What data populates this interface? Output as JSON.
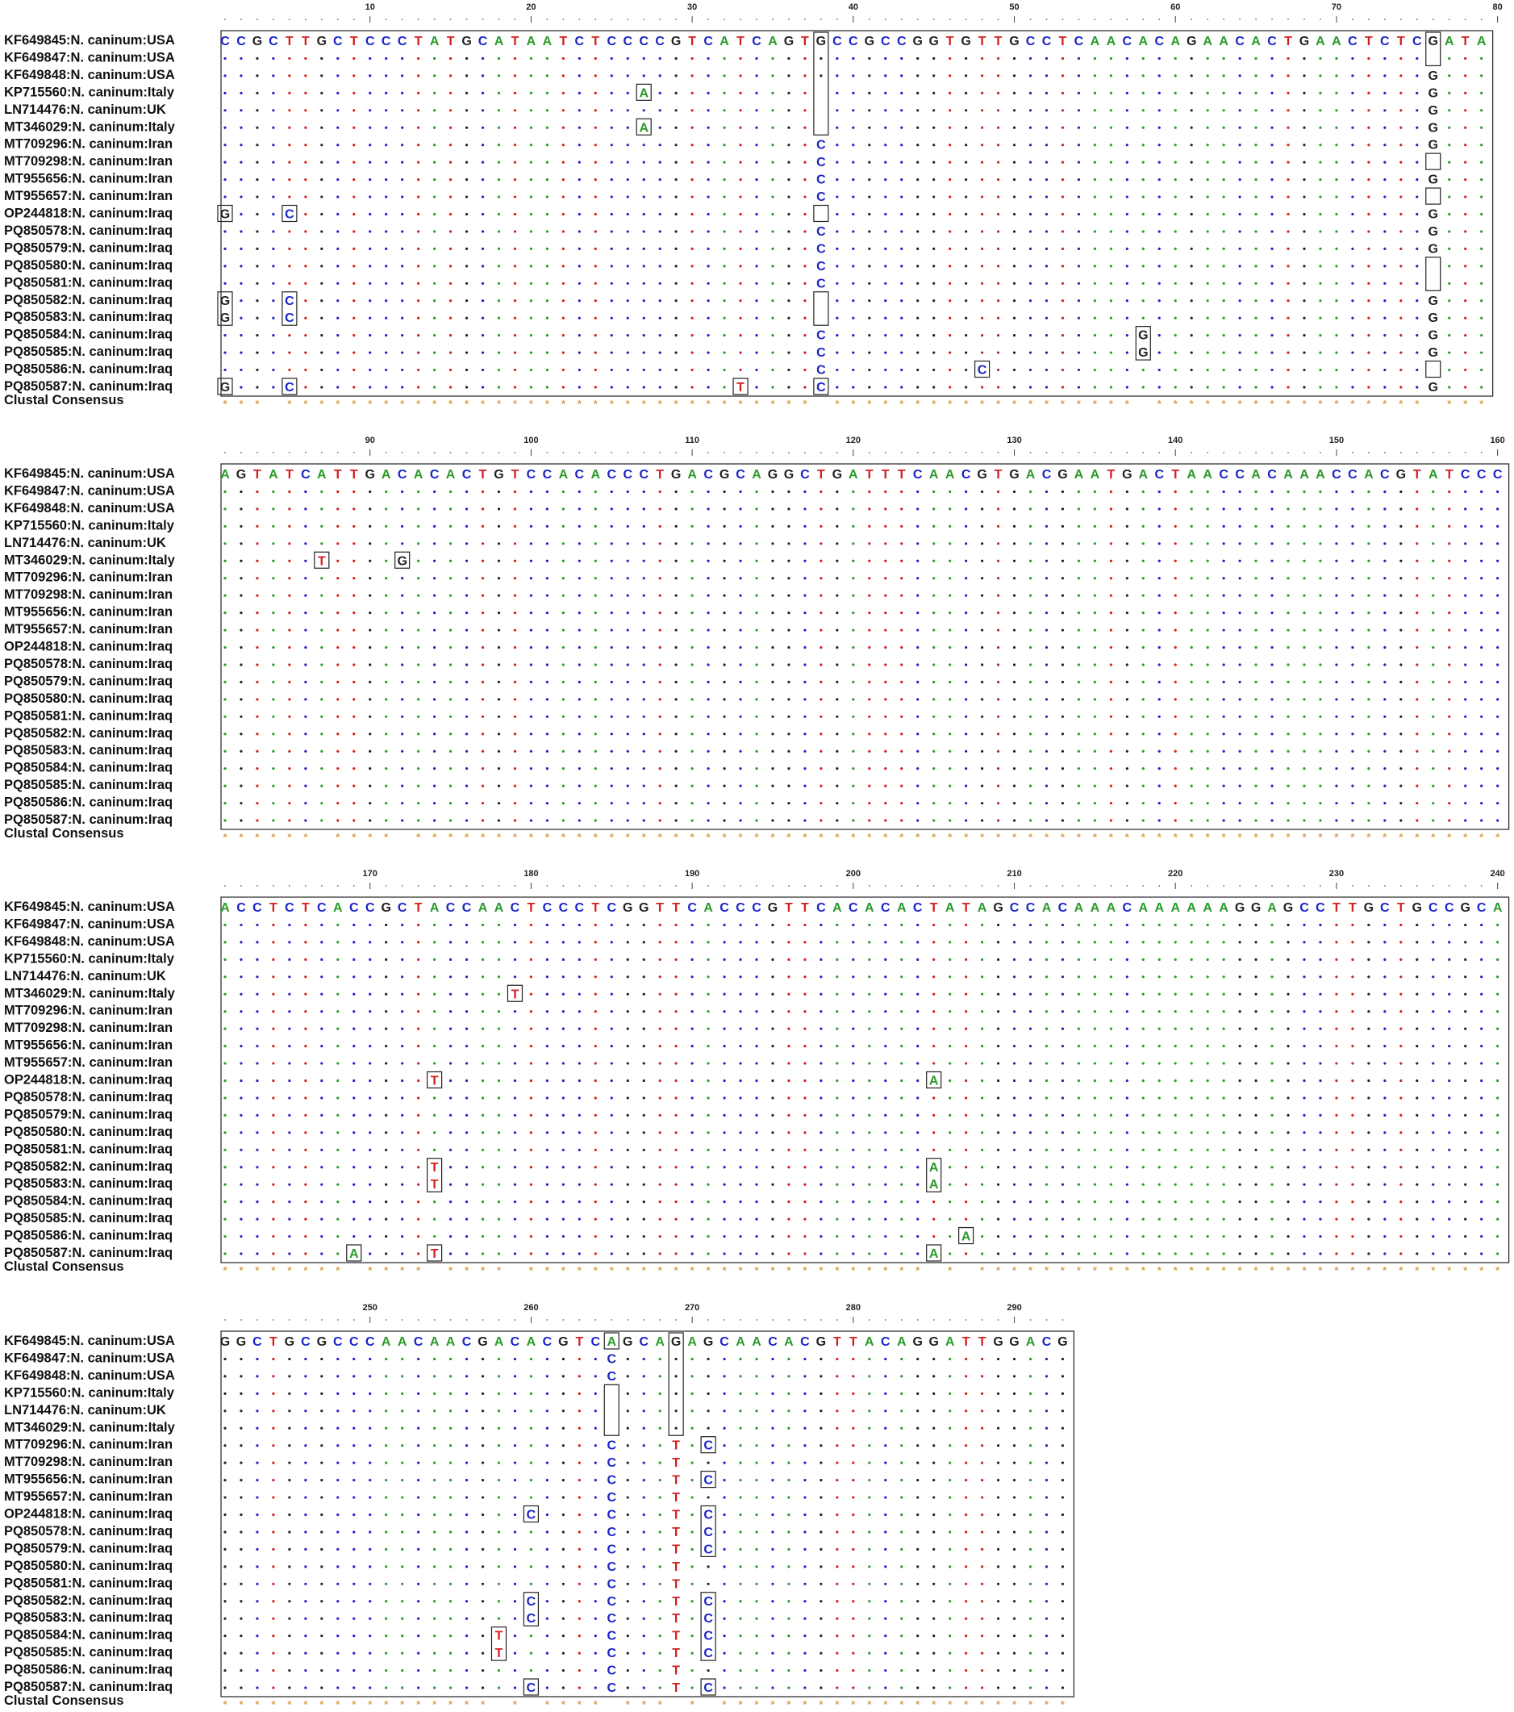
{
  "labels": [
    "KF649845:N. caninum:USA",
    "KF649847:N. caninum:USA",
    "KF649848:N. caninum:USA",
    "KP715560:N. caninum:Italy",
    "LN714476:N. caninum:UK",
    "MT346029:N. caninum:Italy",
    "MT709296:N. caninum:Iran",
    "MT709298:N. caninum:Iran",
    "MT955656:N. caninum:Iran",
    "MT955657:N. caninum:Iran",
    "OP244818:N. caninum:Iraq",
    "PQ850578:N. caninum:Iraq",
    "PQ850579:N. caninum:Iraq",
    "PQ850580:N. caninum:Iraq",
    "PQ850581:N. caninum:Iraq",
    "PQ850582:N. caninum:Iraq",
    "PQ850583:N. caninum:Iraq",
    "PQ850584:N. caninum:Iraq",
    "PQ850585:N. caninum:Iraq",
    "PQ850586:N. caninum:Iraq",
    "PQ850587:N. caninum:Iraq"
  ],
  "consensus_label": "Clustal Consensus",
  "blocks": [
    {
      "start": 1,
      "ticks": [
        "10",
        "20",
        "30",
        "40",
        "50",
        "60",
        "70",
        "80"
      ],
      "reference": "CCGCTTGCTCCCTATGCATAATCTCCCCGTCATCAGTGCCGCCGGTGTTGCCTCAACACAGAACACTGAACTCTCGATA",
      "variants": [
        {
          "row": 3,
          "pos": 27,
          "base": "A"
        },
        {
          "row": 5,
          "pos": 27,
          "base": "A"
        },
        {
          "row": 3,
          "pos": 38,
          "base": "-"
        },
        {
          "row": 4,
          "pos": 38,
          "base": "-"
        },
        {
          "row": 5,
          "pos": 38,
          "base": "-"
        },
        {
          "row": 6,
          "pos": 38,
          "base": "C"
        },
        {
          "row": 7,
          "pos": 38,
          "base": "C"
        },
        {
          "row": 8,
          "pos": 38,
          "base": "C"
        },
        {
          "row": 9,
          "pos": 38,
          "base": "C"
        },
        {
          "row": 10,
          "pos": 38,
          "base": "-"
        },
        {
          "row": 11,
          "pos": 38,
          "base": "C"
        },
        {
          "row": 12,
          "pos": 38,
          "base": "C"
        },
        {
          "row": 13,
          "pos": 38,
          "base": "C"
        },
        {
          "row": 14,
          "pos": 38,
          "base": "C"
        },
        {
          "row": 15,
          "pos": 38,
          "base": "-"
        },
        {
          "row": 16,
          "pos": 38,
          "base": "-"
        },
        {
          "row": 17,
          "pos": 38,
          "base": "C"
        },
        {
          "row": 18,
          "pos": 38,
          "base": "C"
        },
        {
          "row": 19,
          "pos": 38,
          "base": "C"
        },
        {
          "row": 20,
          "pos": 38,
          "base": "C"
        },
        {
          "row": 10,
          "pos": 1,
          "base": "G"
        },
        {
          "row": 15,
          "pos": 1,
          "base": "G"
        },
        {
          "row": 16,
          "pos": 1,
          "base": "G"
        },
        {
          "row": 20,
          "pos": 1,
          "base": "G"
        },
        {
          "row": 10,
          "pos": 5,
          "base": "C"
        },
        {
          "row": 15,
          "pos": 5,
          "base": "C"
        },
        {
          "row": 16,
          "pos": 5,
          "base": "C"
        },
        {
          "row": 20,
          "pos": 5,
          "base": "C"
        },
        {
          "row": 20,
          "pos": 33,
          "base": "T"
        },
        {
          "row": 19,
          "pos": 48,
          "base": "C"
        },
        {
          "row": 17,
          "pos": 58,
          "base": "G"
        },
        {
          "row": 18,
          "pos": 58,
          "base": "G"
        },
        {
          "row": 1,
          "pos": 76,
          "base": "-"
        },
        {
          "row": 2,
          "pos": 76,
          "base": "G"
        },
        {
          "row": 3,
          "pos": 76,
          "base": "G"
        },
        {
          "row": 4,
          "pos": 76,
          "base": "G"
        },
        {
          "row": 5,
          "pos": 76,
          "base": "G"
        },
        {
          "row": 6,
          "pos": 76,
          "base": "G"
        },
        {
          "row": 7,
          "pos": 76,
          "base": "-"
        },
        {
          "row": 8,
          "pos": 76,
          "base": "G"
        },
        {
          "row": 9,
          "pos": 76,
          "base": "-"
        },
        {
          "row": 10,
          "pos": 76,
          "base": "G"
        },
        {
          "row": 11,
          "pos": 76,
          "base": "G"
        },
        {
          "row": 12,
          "pos": 76,
          "base": "G"
        },
        {
          "row": 13,
          "pos": 76,
          "base": "-"
        },
        {
          "row": 14,
          "pos": 76,
          "base": "-"
        },
        {
          "row": 15,
          "pos": 76,
          "base": "G"
        },
        {
          "row": 16,
          "pos": 76,
          "base": "G"
        },
        {
          "row": 17,
          "pos": 76,
          "base": "G"
        },
        {
          "row": 18,
          "pos": 76,
          "base": "G"
        },
        {
          "row": 19,
          "pos": 76,
          "base": "-"
        },
        {
          "row": 20,
          "pos": 76,
          "base": "G"
        }
      ],
      "outlines": [
        {
          "pos": 1,
          "rows": [
            [
              10,
              10
            ],
            [
              15,
              16
            ],
            [
              20,
              20
            ]
          ]
        },
        {
          "pos": 5,
          "rows": [
            [
              10,
              10
            ],
            [
              15,
              16
            ],
            [
              20,
              20
            ]
          ]
        },
        {
          "pos": 27,
          "rows": [
            [
              3,
              3
            ],
            [
              5,
              5
            ]
          ]
        },
        {
          "pos": 33,
          "rows": [
            [
              20,
              20
            ]
          ]
        },
        {
          "pos": 38,
          "rows": [
            [
              0,
              5
            ],
            [
              10,
              10
            ],
            [
              15,
              16
            ],
            [
              20,
              20
            ]
          ]
        },
        {
          "pos": 48,
          "rows": [
            [
              19,
              19
            ]
          ]
        },
        {
          "pos": 58,
          "rows": [
            [
              17,
              18
            ]
          ]
        },
        {
          "pos": 76,
          "rows": [
            [
              0,
              1
            ],
            [
              7,
              7
            ],
            [
              9,
              9
            ],
            [
              13,
              14
            ],
            [
              19,
              19
            ]
          ]
        }
      ],
      "consensus_gaps": [
        4,
        38,
        58,
        76
      ]
    },
    {
      "start": 81,
      "ticks": [
        "90",
        "100",
        "110",
        "120",
        "130",
        "140",
        "150",
        "160"
      ],
      "reference": "AGTATCATTGACACACTGTCCACACCCTGACGCAGGCTGATTTCAACGTGACGAATGACTAACCACAAACCACGTATCCC",
      "variants": [
        {
          "row": 5,
          "pos": 87,
          "base": "T"
        },
        {
          "row": 5,
          "pos": 92,
          "base": "G"
        }
      ],
      "outlines": [
        {
          "pos": 87,
          "rows": [
            [
              5,
              5
            ]
          ]
        },
        {
          "pos": 92,
          "rows": [
            [
              5,
              5
            ]
          ]
        }
      ],
      "consensus_gaps": [
        87,
        92
      ]
    },
    {
      "start": 161,
      "ticks": [
        "170",
        "180",
        "190",
        "200",
        "210",
        "220",
        "230",
        "240"
      ],
      "reference": "ACCTCTCACCGCTACCAACTCCCTCGGTTCACCCGTTCACACACTATAGCCACAAACAAAAAAGGAGCCTTGCTGCCGCA",
      "variants": [
        {
          "row": 5,
          "pos": 179,
          "base": "T"
        },
        {
          "row": 10,
          "pos": 174,
          "base": "T"
        },
        {
          "row": 15,
          "pos": 174,
          "base": "T"
        },
        {
          "row": 16,
          "pos": 174,
          "base": "T"
        },
        {
          "row": 20,
          "pos": 174,
          "base": "T"
        },
        {
          "row": 10,
          "pos": 205,
          "base": "A"
        },
        {
          "row": 15,
          "pos": 205,
          "base": "A"
        },
        {
          "row": 16,
          "pos": 205,
          "base": "A"
        },
        {
          "row": 20,
          "pos": 205,
          "base": "A"
        },
        {
          "row": 19,
          "pos": 207,
          "base": "A"
        },
        {
          "row": 20,
          "pos": 169,
          "base": "A"
        }
      ],
      "outlines": [
        {
          "pos": 169,
          "rows": [
            [
              20,
              20
            ]
          ]
        },
        {
          "pos": 174,
          "rows": [
            [
              10,
              10
            ],
            [
              15,
              16
            ],
            [
              20,
              20
            ]
          ]
        },
        {
          "pos": 179,
          "rows": [
            [
              5,
              5
            ]
          ]
        },
        {
          "pos": 205,
          "rows": [
            [
              10,
              10
            ],
            [
              15,
              16
            ],
            [
              20,
              20
            ]
          ]
        },
        {
          "pos": 207,
          "rows": [
            [
              19,
              19
            ]
          ]
        }
      ],
      "consensus_gaps": [
        169,
        174,
        179,
        205,
        207
      ]
    },
    {
      "start": 241,
      "ticks": [
        "250",
        "260",
        "270",
        "280",
        "290"
      ],
      "reference": "GGCTGCGCCCAACAACGACACGTCAGCAGAGCAACACGTTACAGGATTGGACG",
      "variants": [
        {
          "row": 1,
          "pos": 265,
          "base": "C"
        },
        {
          "row": 2,
          "pos": 265,
          "base": "C"
        },
        {
          "row": 3,
          "pos": 265,
          "base": "-"
        },
        {
          "row": 4,
          "pos": 265,
          "base": "-"
        },
        {
          "row": 5,
          "pos": 265,
          "base": "-"
        },
        {
          "row": 6,
          "pos": 265,
          "base": "C"
        },
        {
          "row": 7,
          "pos": 265,
          "base": "C"
        },
        {
          "row": 8,
          "pos": 265,
          "base": "C"
        },
        {
          "row": 9,
          "pos": 265,
          "base": "C"
        },
        {
          "row": 10,
          "pos": 265,
          "base": "C"
        },
        {
          "row": 11,
          "pos": 265,
          "base": "C"
        },
        {
          "row": 12,
          "pos": 265,
          "base": "C"
        },
        {
          "row": 13,
          "pos": 265,
          "base": "C"
        },
        {
          "row": 14,
          "pos": 265,
          "base": "C"
        },
        {
          "row": 15,
          "pos": 265,
          "base": "C"
        },
        {
          "row": 16,
          "pos": 265,
          "base": "C"
        },
        {
          "row": 17,
          "pos": 265,
          "base": "C"
        },
        {
          "row": 18,
          "pos": 265,
          "base": "C"
        },
        {
          "row": 19,
          "pos": 265,
          "base": "C"
        },
        {
          "row": 20,
          "pos": 265,
          "base": "C"
        },
        {
          "row": 6,
          "pos": 269,
          "base": "T"
        },
        {
          "row": 7,
          "pos": 269,
          "base": "T"
        },
        {
          "row": 8,
          "pos": 269,
          "base": "T"
        },
        {
          "row": 9,
          "pos": 269,
          "base": "T"
        },
        {
          "row": 10,
          "pos": 269,
          "base": "T"
        },
        {
          "row": 11,
          "pos": 269,
          "base": "T"
        },
        {
          "row": 12,
          "pos": 269,
          "base": "T"
        },
        {
          "row": 13,
          "pos": 269,
          "base": "T"
        },
        {
          "row": 14,
          "pos": 269,
          "base": "T"
        },
        {
          "row": 15,
          "pos": 269,
          "base": "T"
        },
        {
          "row": 16,
          "pos": 269,
          "base": "T"
        },
        {
          "row": 17,
          "pos": 269,
          "base": "T"
        },
        {
          "row": 18,
          "pos": 269,
          "base": "T"
        },
        {
          "row": 19,
          "pos": 269,
          "base": "T"
        },
        {
          "row": 20,
          "pos": 269,
          "base": "T"
        },
        {
          "row": 6,
          "pos": 271,
          "base": "C"
        },
        {
          "row": 8,
          "pos": 271,
          "base": "C"
        },
        {
          "row": 10,
          "pos": 271,
          "base": "C"
        },
        {
          "row": 11,
          "pos": 271,
          "base": "C"
        },
        {
          "row": 12,
          "pos": 271,
          "base": "C"
        },
        {
          "row": 15,
          "pos": 271,
          "base": "C"
        },
        {
          "row": 16,
          "pos": 271,
          "base": "C"
        },
        {
          "row": 17,
          "pos": 271,
          "base": "C"
        },
        {
          "row": 18,
          "pos": 271,
          "base": "C"
        },
        {
          "row": 20,
          "pos": 271,
          "base": "C"
        },
        {
          "row": 10,
          "pos": 260,
          "base": "C"
        },
        {
          "row": 15,
          "pos": 260,
          "base": "C"
        },
        {
          "row": 16,
          "pos": 260,
          "base": "C"
        },
        {
          "row": 20,
          "pos": 260,
          "base": "C"
        },
        {
          "row": 17,
          "pos": 258,
          "base": "T"
        },
        {
          "row": 18,
          "pos": 258,
          "base": "T"
        }
      ],
      "outlines": [
        {
          "pos": 258,
          "rows": [
            [
              17,
              18
            ]
          ]
        },
        {
          "pos": 260,
          "rows": [
            [
              10,
              10
            ],
            [
              15,
              16
            ],
            [
              20,
              20
            ]
          ]
        },
        {
          "pos": 265,
          "rows": [
            [
              0,
              0
            ],
            [
              3,
              5
            ]
          ]
        },
        {
          "pos": 269,
          "rows": [
            [
              0,
              5
            ]
          ]
        },
        {
          "pos": 271,
          "rows": [
            [
              6,
              6
            ],
            [
              8,
              8
            ],
            [
              10,
              12
            ],
            [
              15,
              18
            ],
            [
              20,
              20
            ]
          ]
        }
      ],
      "consensus_gaps": [
        258,
        260,
        265,
        269,
        271
      ]
    }
  ],
  "colors": {
    "A": "#2a9a2a",
    "C": "#1a23c8",
    "G": "#222222",
    "T": "#d41e1e",
    "consensus_star": "#d8a24a",
    "frame": "#222222"
  }
}
